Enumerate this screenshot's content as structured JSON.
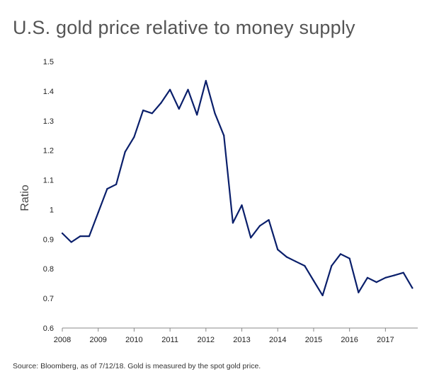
{
  "chart_data": {
    "type": "line",
    "title": "U.S. gold price relative to money supply",
    "ylabel": "Ratio",
    "xlabel": "",
    "xlim": [
      2008,
      2017.9
    ],
    "ylim": [
      0.6,
      1.5
    ],
    "yticks": [
      0.6,
      0.7,
      0.8,
      0.9,
      1,
      1.1,
      1.2,
      1.3,
      1.4,
      1.5
    ],
    "xticks": [
      2008,
      2009,
      2010,
      2011,
      2012,
      2013,
      2014,
      2015,
      2016,
      2017
    ],
    "grid": false,
    "line_color": "#0a1f6b",
    "x": [
      2008.0,
      2008.25,
      2008.5,
      2008.75,
      2009.0,
      2009.25,
      2009.5,
      2009.75,
      2010.0,
      2010.25,
      2010.5,
      2010.75,
      2011.0,
      2011.25,
      2011.5,
      2011.75,
      2012.0,
      2012.25,
      2012.5,
      2012.75,
      2013.0,
      2013.25,
      2013.5,
      2013.75,
      2014.0,
      2014.25,
      2014.5,
      2014.75,
      2015.0,
      2015.25,
      2015.5,
      2015.75,
      2016.0,
      2016.25,
      2016.5,
      2016.75,
      2017.0,
      2017.25,
      2017.5,
      2017.75
    ],
    "y": [
      0.92,
      0.89,
      0.91,
      0.91,
      0.99,
      1.07,
      1.085,
      1.195,
      1.245,
      1.335,
      1.325,
      1.36,
      1.405,
      1.34,
      1.405,
      1.32,
      1.435,
      1.325,
      1.25,
      0.955,
      1.015,
      0.905,
      0.945,
      0.965,
      0.865,
      0.84,
      0.825,
      0.81,
      0.76,
      0.71,
      0.81,
      0.85,
      0.835,
      0.72,
      0.77,
      0.755,
      0.77,
      0.778,
      0.787,
      0.735
    ]
  },
  "source_note": "Source: Bloomberg, as of 7/12/18. Gold is measured by the spot gold price."
}
